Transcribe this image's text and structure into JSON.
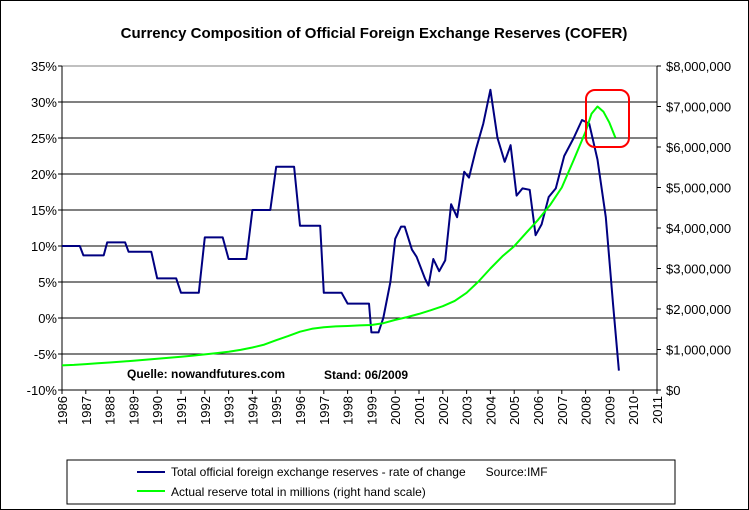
{
  "chart_data": {
    "type": "line",
    "title": "Currency Composition of Official Foreign Exchange Reserves (COFER)",
    "x_ticks": [
      "1986",
      "1987",
      "1988",
      "1989",
      "1990",
      "1991",
      "1992",
      "1993",
      "1994",
      "1995",
      "1996",
      "1997",
      "1998",
      "1999",
      "2000",
      "2001",
      "2002",
      "2003",
      "2004",
      "2005",
      "2006",
      "2007",
      "2008",
      "2009",
      "2010",
      "2011"
    ],
    "y_left": {
      "ticks": [
        "35%",
        "30%",
        "25%",
        "20%",
        "15%",
        "10%",
        "5%",
        "0%",
        "-5%",
        "-10%"
      ],
      "range": [
        -10,
        35
      ],
      "unit": "%"
    },
    "y_right": {
      "ticks": [
        "$8,000,000",
        "$7,000,000",
        "$6,000,000",
        "$5,000,000",
        "$4,000,000",
        "$3,000,000",
        "$2,000,000",
        "$1,000,000",
        "$0"
      ],
      "range": [
        0,
        8000000
      ]
    },
    "xlim": [
      1986,
      2011
    ],
    "grid": "horizontal",
    "series": [
      {
        "name": "Total official foreign exchange reserves - rate of change      Source:IMF",
        "color": "#000080",
        "axis": "left",
        "points": [
          [
            1986.0,
            10
          ],
          [
            1986.75,
            10
          ],
          [
            1986.9,
            8.7
          ],
          [
            1987.75,
            8.7
          ],
          [
            1987.9,
            10.5
          ],
          [
            1988.65,
            10.5
          ],
          [
            1988.8,
            9.2
          ],
          [
            1989.75,
            9.2
          ],
          [
            1990.0,
            5.5
          ],
          [
            1990.8,
            5.5
          ],
          [
            1991.0,
            3.5
          ],
          [
            1991.75,
            3.5
          ],
          [
            1992.0,
            11.2
          ],
          [
            1992.75,
            11.2
          ],
          [
            1993.0,
            8.2
          ],
          [
            1993.75,
            8.2
          ],
          [
            1994.0,
            15
          ],
          [
            1994.75,
            15
          ],
          [
            1995.0,
            21
          ],
          [
            1995.75,
            21
          ],
          [
            1996.0,
            12.8
          ],
          [
            1996.85,
            12.8
          ],
          [
            1997.0,
            3.5
          ],
          [
            1997.75,
            3.5
          ],
          [
            1998.0,
            2
          ],
          [
            1998.9,
            2
          ],
          [
            1999.0,
            -2
          ],
          [
            1999.3,
            -2
          ],
          [
            1999.5,
            0
          ],
          [
            1999.8,
            5
          ],
          [
            2000.0,
            11
          ],
          [
            2000.25,
            12.7
          ],
          [
            2000.4,
            12.7
          ],
          [
            2000.7,
            9.5
          ],
          [
            2000.9,
            8.5
          ],
          [
            2001.25,
            5.5
          ],
          [
            2001.4,
            4.5
          ],
          [
            2001.6,
            8.2
          ],
          [
            2001.85,
            6.5
          ],
          [
            2002.1,
            8
          ],
          [
            2002.35,
            15.8
          ],
          [
            2002.6,
            14
          ],
          [
            2002.9,
            20.3
          ],
          [
            2003.1,
            19.5
          ],
          [
            2003.4,
            23.5
          ],
          [
            2003.7,
            27
          ],
          [
            2004.0,
            31.7
          ],
          [
            2004.3,
            25
          ],
          [
            2004.6,
            21.7
          ],
          [
            2004.85,
            24
          ],
          [
            2005.1,
            17
          ],
          [
            2005.35,
            18
          ],
          [
            2005.65,
            17.8
          ],
          [
            2005.9,
            11.5
          ],
          [
            2006.15,
            13
          ],
          [
            2006.45,
            16.8
          ],
          [
            2006.75,
            18
          ],
          [
            2007.1,
            22.5
          ],
          [
            2007.5,
            25
          ],
          [
            2007.85,
            27.5
          ],
          [
            2008.15,
            27
          ],
          [
            2008.5,
            22
          ],
          [
            2008.85,
            14
          ],
          [
            2009.15,
            2
          ],
          [
            2009.4,
            -7.3
          ]
        ]
      },
      {
        "name": "Actual reserve total in millions (right hand scale)",
        "color": "#00ff00",
        "axis": "right",
        "points": [
          [
            1986.0,
            607000
          ],
          [
            1986.5,
            620000
          ],
          [
            1987.0,
            640000
          ],
          [
            1987.5,
            662000
          ],
          [
            1988.0,
            680000
          ],
          [
            1988.5,
            700000
          ],
          [
            1989.0,
            722000
          ],
          [
            1989.5,
            745000
          ],
          [
            1990.0,
            770000
          ],
          [
            1990.5,
            795000
          ],
          [
            1991.0,
            820000
          ],
          [
            1991.5,
            850000
          ],
          [
            1992.0,
            880000
          ],
          [
            1992.5,
            910000
          ],
          [
            1993.0,
            945000
          ],
          [
            1993.5,
            990000
          ],
          [
            1994.0,
            1050000
          ],
          [
            1994.5,
            1120000
          ],
          [
            1995.0,
            1230000
          ],
          [
            1995.5,
            1330000
          ],
          [
            1996.0,
            1440000
          ],
          [
            1996.5,
            1510000
          ],
          [
            1997.0,
            1550000
          ],
          [
            1997.5,
            1570000
          ],
          [
            1998.0,
            1580000
          ],
          [
            1998.5,
            1595000
          ],
          [
            1999.0,
            1605000
          ],
          [
            1999.5,
            1650000
          ],
          [
            2000.0,
            1730000
          ],
          [
            2000.5,
            1800000
          ],
          [
            2001.0,
            1880000
          ],
          [
            2001.5,
            1970000
          ],
          [
            2002.0,
            2070000
          ],
          [
            2002.5,
            2200000
          ],
          [
            2003.0,
            2400000
          ],
          [
            2003.5,
            2680000
          ],
          [
            2004.0,
            3000000
          ],
          [
            2004.5,
            3300000
          ],
          [
            2005.0,
            3550000
          ],
          [
            2005.5,
            3880000
          ],
          [
            2006.0,
            4200000
          ],
          [
            2006.5,
            4560000
          ],
          [
            2007.0,
            5000000
          ],
          [
            2007.5,
            5680000
          ],
          [
            2008.0,
            6380000
          ],
          [
            2008.25,
            6820000
          ],
          [
            2008.5,
            7000000
          ],
          [
            2008.75,
            6870000
          ],
          [
            2009.0,
            6600000
          ],
          [
            2009.25,
            6230000
          ]
        ]
      }
    ],
    "annotations": [
      {
        "text": "Quelle: nowandfutures.com",
        "color": "#000000"
      },
      {
        "text": "Stand: 06/2009",
        "color": "#ff0000"
      }
    ],
    "highlight_color": "#ff0000",
    "legend_placement": "bottom"
  }
}
